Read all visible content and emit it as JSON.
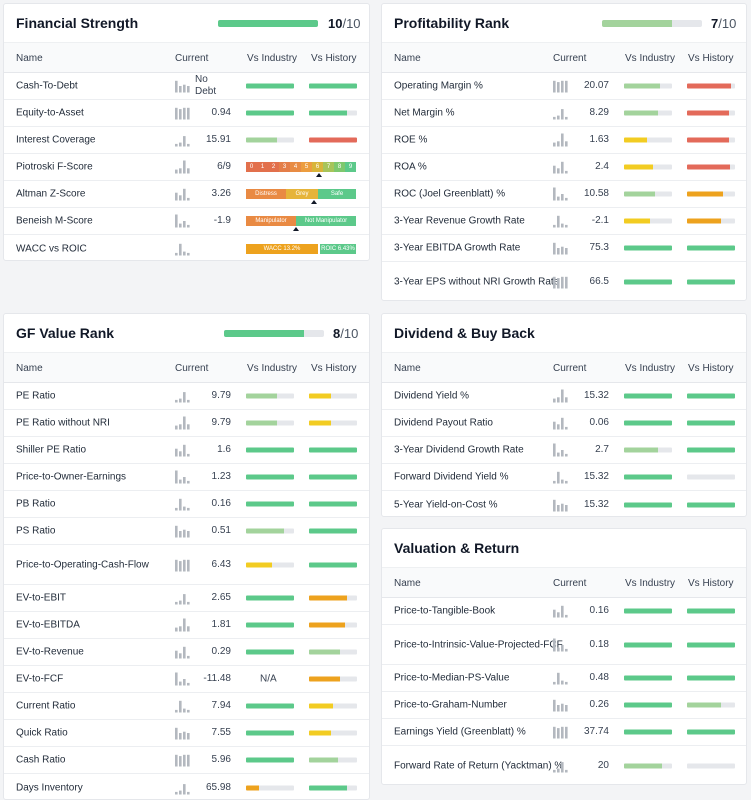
{
  "colors": {
    "green": "#5cc98a",
    "light_green": "#a3d39c",
    "yellow": "#f2cc22",
    "orange": "#eda21e",
    "red": "#e36a5a",
    "track": "#e5e7eb",
    "spark": "#b3b8bf"
  },
  "columns": {
    "name": "Name",
    "current": "Current",
    "industry": "Vs Industry",
    "history": "Vs History"
  },
  "financial": {
    "title": "Financial Strength",
    "score": "10",
    "denominator": "/10",
    "rank_fraction": 1.0,
    "rows": [
      {
        "name": "Cash-To-Debt",
        "value": "No Debt",
        "industry": {
          "fill": 1.0,
          "color": "green"
        },
        "history": {
          "fill": 1.0,
          "color": "green"
        }
      },
      {
        "name": "Equity-to-Asset",
        "value": "0.94",
        "industry": {
          "fill": 1.0,
          "color": "green"
        },
        "history": {
          "fill": 0.8,
          "color": "green"
        }
      },
      {
        "name": "Interest Coverage",
        "value": "15.91",
        "industry": {
          "fill": 0.65,
          "color": "light_green"
        },
        "history": {
          "fill": 1.0,
          "color": "red"
        }
      },
      {
        "name": "Piotroski F-Score",
        "value": "6/9",
        "scale": [
          "0",
          "1",
          "2",
          "3",
          "4",
          "5",
          "6",
          "7",
          "8",
          "9"
        ],
        "marker": 0.66
      },
      {
        "name": "Altman Z-Score",
        "value": "3.26",
        "zones": [
          "Distress",
          "Grey",
          "Safe"
        ],
        "marker": 0.62
      },
      {
        "name": "Beneish M-Score",
        "value": "-1.9",
        "zones": [
          "Manipulator",
          "Not Manipulator"
        ],
        "marker": 0.45
      },
      {
        "name": "WACC vs ROIC",
        "value": "",
        "wacc_label": "WACC 13.2%",
        "roic_label": "ROIC 6.43%"
      }
    ]
  },
  "profitability": {
    "title": "Profitability Rank",
    "score": "7",
    "denominator": "/10",
    "rank_fraction": 0.7,
    "rows": [
      {
        "name": "Operating Margin %",
        "value": "20.07",
        "industry": {
          "fill": 0.75,
          "color": "light_green"
        },
        "history": {
          "fill": 0.92,
          "color": "red"
        }
      },
      {
        "name": "Net Margin %",
        "value": "8.29",
        "industry": {
          "fill": 0.7,
          "color": "light_green"
        },
        "history": {
          "fill": 0.88,
          "color": "red"
        }
      },
      {
        "name": "ROE %",
        "value": "1.63",
        "industry": {
          "fill": 0.48,
          "color": "yellow"
        },
        "history": {
          "fill": 0.88,
          "color": "red"
        }
      },
      {
        "name": "ROA %",
        "value": "2.4",
        "industry": {
          "fill": 0.6,
          "color": "yellow"
        },
        "history": {
          "fill": 0.9,
          "color": "red"
        }
      },
      {
        "name": "ROC (Joel Greenblatt) %",
        "value": "10.58",
        "industry": {
          "fill": 0.65,
          "color": "light_green"
        },
        "history": {
          "fill": 0.75,
          "color": "orange"
        }
      },
      {
        "name": "3-Year Revenue Growth Rate",
        "value": "-2.1",
        "industry": {
          "fill": 0.55,
          "color": "yellow"
        },
        "history": {
          "fill": 0.7,
          "color": "orange"
        }
      },
      {
        "name": "3-Year EBITDA Growth Rate",
        "value": "75.3",
        "industry": {
          "fill": 1.0,
          "color": "green"
        },
        "history": {
          "fill": 1.0,
          "color": "green"
        }
      },
      {
        "name": "3-Year EPS without NRI Growth Rate",
        "value": "66.5",
        "industry": {
          "fill": 1.0,
          "color": "green"
        },
        "history": {
          "fill": 1.0,
          "color": "green"
        }
      }
    ]
  },
  "gfvalue": {
    "title": "GF Value Rank",
    "score": "8",
    "denominator": "/10",
    "rank_fraction": 0.8,
    "rows": [
      {
        "name": "PE Ratio",
        "value": "9.79",
        "industry": {
          "fill": 0.65,
          "color": "light_green"
        },
        "history": {
          "fill": 0.45,
          "color": "yellow"
        }
      },
      {
        "name": "PE Ratio without NRI",
        "value": "9.79",
        "industry": {
          "fill": 0.65,
          "color": "light_green"
        },
        "history": {
          "fill": 0.45,
          "color": "yellow"
        }
      },
      {
        "name": "Shiller PE Ratio",
        "value": "1.6",
        "industry": {
          "fill": 1.0,
          "color": "green"
        },
        "history": {
          "fill": 1.0,
          "color": "green"
        }
      },
      {
        "name": "Price-to-Owner-Earnings",
        "value": "1.23",
        "industry": {
          "fill": 1.0,
          "color": "green"
        },
        "history": {
          "fill": 1.0,
          "color": "green"
        }
      },
      {
        "name": "PB Ratio",
        "value": "0.16",
        "industry": {
          "fill": 1.0,
          "color": "green"
        },
        "history": {
          "fill": 1.0,
          "color": "green"
        }
      },
      {
        "name": "PS Ratio",
        "value": "0.51",
        "industry": {
          "fill": 0.8,
          "color": "light_green"
        },
        "history": {
          "fill": 1.0,
          "color": "green"
        }
      },
      {
        "name": "Price-to-Operating-Cash-Flow",
        "value": "6.43",
        "industry": {
          "fill": 0.55,
          "color": "yellow"
        },
        "history": {
          "fill": 1.0,
          "color": "green"
        }
      },
      {
        "name": "EV-to-EBIT",
        "value": "2.65",
        "industry": {
          "fill": 1.0,
          "color": "green"
        },
        "history": {
          "fill": 0.8,
          "color": "orange"
        }
      },
      {
        "name": "EV-to-EBITDA",
        "value": "1.81",
        "industry": {
          "fill": 1.0,
          "color": "green"
        },
        "history": {
          "fill": 0.75,
          "color": "orange"
        }
      },
      {
        "name": "EV-to-Revenue",
        "value": "0.29",
        "industry": {
          "fill": 1.0,
          "color": "green"
        },
        "history": {
          "fill": 0.65,
          "color": "light_green"
        }
      },
      {
        "name": "EV-to-FCF",
        "value": "-11.48",
        "industry_text": "N/A",
        "history": {
          "fill": 0.65,
          "color": "orange"
        }
      },
      {
        "name": "Current Ratio",
        "value": "7.94",
        "industry": {
          "fill": 1.0,
          "color": "green"
        },
        "history": {
          "fill": 0.5,
          "color": "yellow"
        }
      },
      {
        "name": "Quick Ratio",
        "value": "7.55",
        "industry": {
          "fill": 1.0,
          "color": "green"
        },
        "history": {
          "fill": 0.45,
          "color": "yellow"
        }
      },
      {
        "name": "Cash Ratio",
        "value": "5.96",
        "industry": {
          "fill": 1.0,
          "color": "green"
        },
        "history": {
          "fill": 0.6,
          "color": "light_green"
        }
      },
      {
        "name": "Days Inventory",
        "value": "65.98",
        "industry": {
          "fill": 0.28,
          "color": "orange"
        },
        "history": {
          "fill": 0.8,
          "color": "green"
        }
      }
    ]
  },
  "dividend": {
    "title": "Dividend & Buy Back",
    "rows": [
      {
        "name": "Dividend Yield %",
        "value": "15.32",
        "industry": {
          "fill": 1.0,
          "color": "green"
        },
        "history": {
          "fill": 1.0,
          "color": "green"
        }
      },
      {
        "name": "Dividend Payout Ratio",
        "value": "0.06",
        "industry": {
          "fill": 1.0,
          "color": "green"
        },
        "history": {
          "fill": 1.0,
          "color": "green"
        }
      },
      {
        "name": "3-Year Dividend Growth Rate",
        "value": "2.7",
        "industry": {
          "fill": 0.7,
          "color": "light_green"
        },
        "history": {
          "fill": 1.0,
          "color": "green"
        }
      },
      {
        "name": "Forward Dividend Yield %",
        "value": "15.32",
        "industry": {
          "fill": 1.0,
          "color": "green"
        },
        "history": {
          "fill": 0.0,
          "color": "green"
        }
      },
      {
        "name": "5-Year Yield-on-Cost %",
        "value": "15.32",
        "industry": {
          "fill": 1.0,
          "color": "green"
        },
        "history": {
          "fill": 1.0,
          "color": "green"
        }
      }
    ]
  },
  "valuation": {
    "title": "Valuation & Return",
    "rows": [
      {
        "name": "Price-to-Tangible-Book",
        "value": "0.16",
        "industry": {
          "fill": 1.0,
          "color": "green"
        },
        "history": {
          "fill": 1.0,
          "color": "green"
        }
      },
      {
        "name": "Price-to-Intrinsic-Value-Projected-FCF",
        "value": "0.18",
        "industry": {
          "fill": 1.0,
          "color": "green"
        },
        "history": {
          "fill": 1.0,
          "color": "green"
        }
      },
      {
        "name": "Price-to-Median-PS-Value",
        "value": "0.48",
        "industry": {
          "fill": 1.0,
          "color": "green"
        },
        "history": {
          "fill": 1.0,
          "color": "green"
        }
      },
      {
        "name": "Price-to-Graham-Number",
        "value": "0.26",
        "industry": {
          "fill": 1.0,
          "color": "green"
        },
        "history": {
          "fill": 0.7,
          "color": "light_green"
        }
      },
      {
        "name": "Earnings Yield (Greenblatt) %",
        "value": "37.74",
        "industry": {
          "fill": 1.0,
          "color": "green"
        },
        "history": {
          "fill": 1.0,
          "color": "green"
        }
      },
      {
        "name": "Forward Rate of Return (Yacktman) %",
        "value": "20",
        "industry": {
          "fill": 0.8,
          "color": "light_green"
        },
        "history": {
          "fill": 0.0,
          "color": "green"
        }
      }
    ]
  }
}
